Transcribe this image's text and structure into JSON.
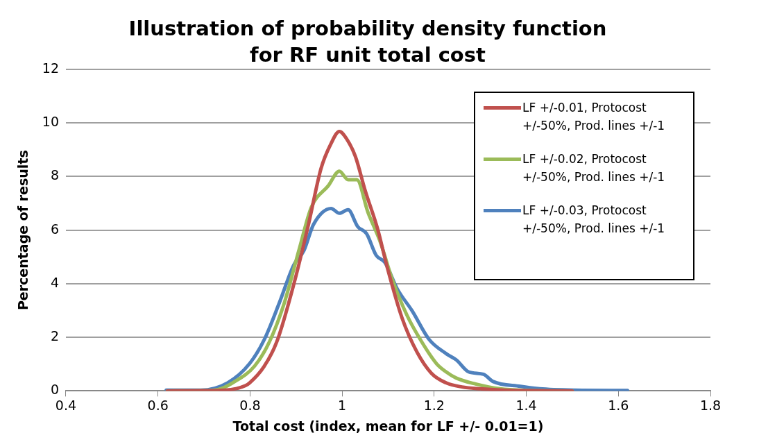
{
  "chart_data": {
    "type": "line",
    "title": "Illustration of probability density function for RF unit total cost",
    "xlabel": "Total cost (index, mean for LF +/- 0.01=1)",
    "ylabel": "Percentage of results",
    "xlim": [
      0.4,
      1.8
    ],
    "xticks": [
      0.4,
      0.6,
      0.8,
      1,
      1.2,
      1.4,
      1.6,
      1.8
    ],
    "ylim": [
      0,
      12
    ],
    "yticks": [
      0,
      2,
      4,
      6,
      8,
      10,
      12
    ],
    "grid": "y",
    "legend": "top right",
    "marker": "none",
    "line_style": "solid",
    "series": [
      {
        "name": "LF +/-0.01, Protocost +/-50%, Prod. lines +/-1",
        "color": "#c0504d",
        "x": [
          0.62,
          0.7,
          0.746,
          0.79,
          0.799,
          0.83,
          0.858,
          0.895,
          0.927,
          0.954,
          0.975,
          0.994,
          1.01,
          1.029,
          1.05,
          1.077,
          1.098,
          1.13,
          1.162,
          1.194,
          1.226,
          1.26,
          1.3,
          1.35,
          1.4,
          1.5
        ],
        "values": [
          0,
          0.01,
          0.03,
          0.2,
          0.3,
          0.9,
          1.83,
          3.98,
          6.22,
          8.29,
          9.2,
          9.68,
          9.4,
          8.74,
          7.48,
          6.05,
          4.61,
          2.73,
          1.47,
          0.66,
          0.3,
          0.15,
          0.08,
          0.03,
          0.01,
          0
        ]
      },
      {
        "name": "LF +/-0.02, Protocost +/-50%, Prod. lines +/-1",
        "color": "#9bbb59",
        "x": [
          0.62,
          0.7,
          0.73,
          0.762,
          0.81,
          0.842,
          0.874,
          0.906,
          0.933,
          0.97,
          0.994,
          1.013,
          1.032,
          1.056,
          1.082,
          1.109,
          1.141,
          1.173,
          1.205,
          1.226,
          1.248,
          1.29,
          1.343,
          1.4,
          1.5
        ],
        "values": [
          0,
          0.01,
          0.05,
          0.3,
          0.93,
          1.83,
          3.26,
          5.24,
          6.85,
          7.66,
          8.2,
          7.88,
          7.88,
          6.67,
          5.6,
          4.16,
          2.82,
          1.83,
          1.02,
          0.71,
          0.48,
          0.26,
          0.08,
          0.02,
          0
        ]
      },
      {
        "name": "LF +/-0.03, Protocost +/-50%, Prod. lines +/-1",
        "color": "#4f81bd",
        "x": [
          0.618,
          0.693,
          0.751,
          0.799,
          0.831,
          0.863,
          0.895,
          0.917,
          0.938,
          0.976,
          0.994,
          1.013,
          1.034,
          1.053,
          1.074,
          1.093,
          1.12,
          1.152,
          1.189,
          1.227,
          1.248,
          1.275,
          1.307,
          1.328,
          1.387,
          1.429,
          1.504,
          1.6,
          1.62
        ],
        "values": [
          0.03,
          0.03,
          0.3,
          1.02,
          1.92,
          3.26,
          4.7,
          5.24,
          6.22,
          6.81,
          6.63,
          6.76,
          6.13,
          5.87,
          5.06,
          4.79,
          3.8,
          2.99,
          1.92,
          1.38,
          1.16,
          0.71,
          0.62,
          0.35,
          0.17,
          0.08,
          0.03,
          0.02,
          0.02
        ]
      }
    ]
  }
}
